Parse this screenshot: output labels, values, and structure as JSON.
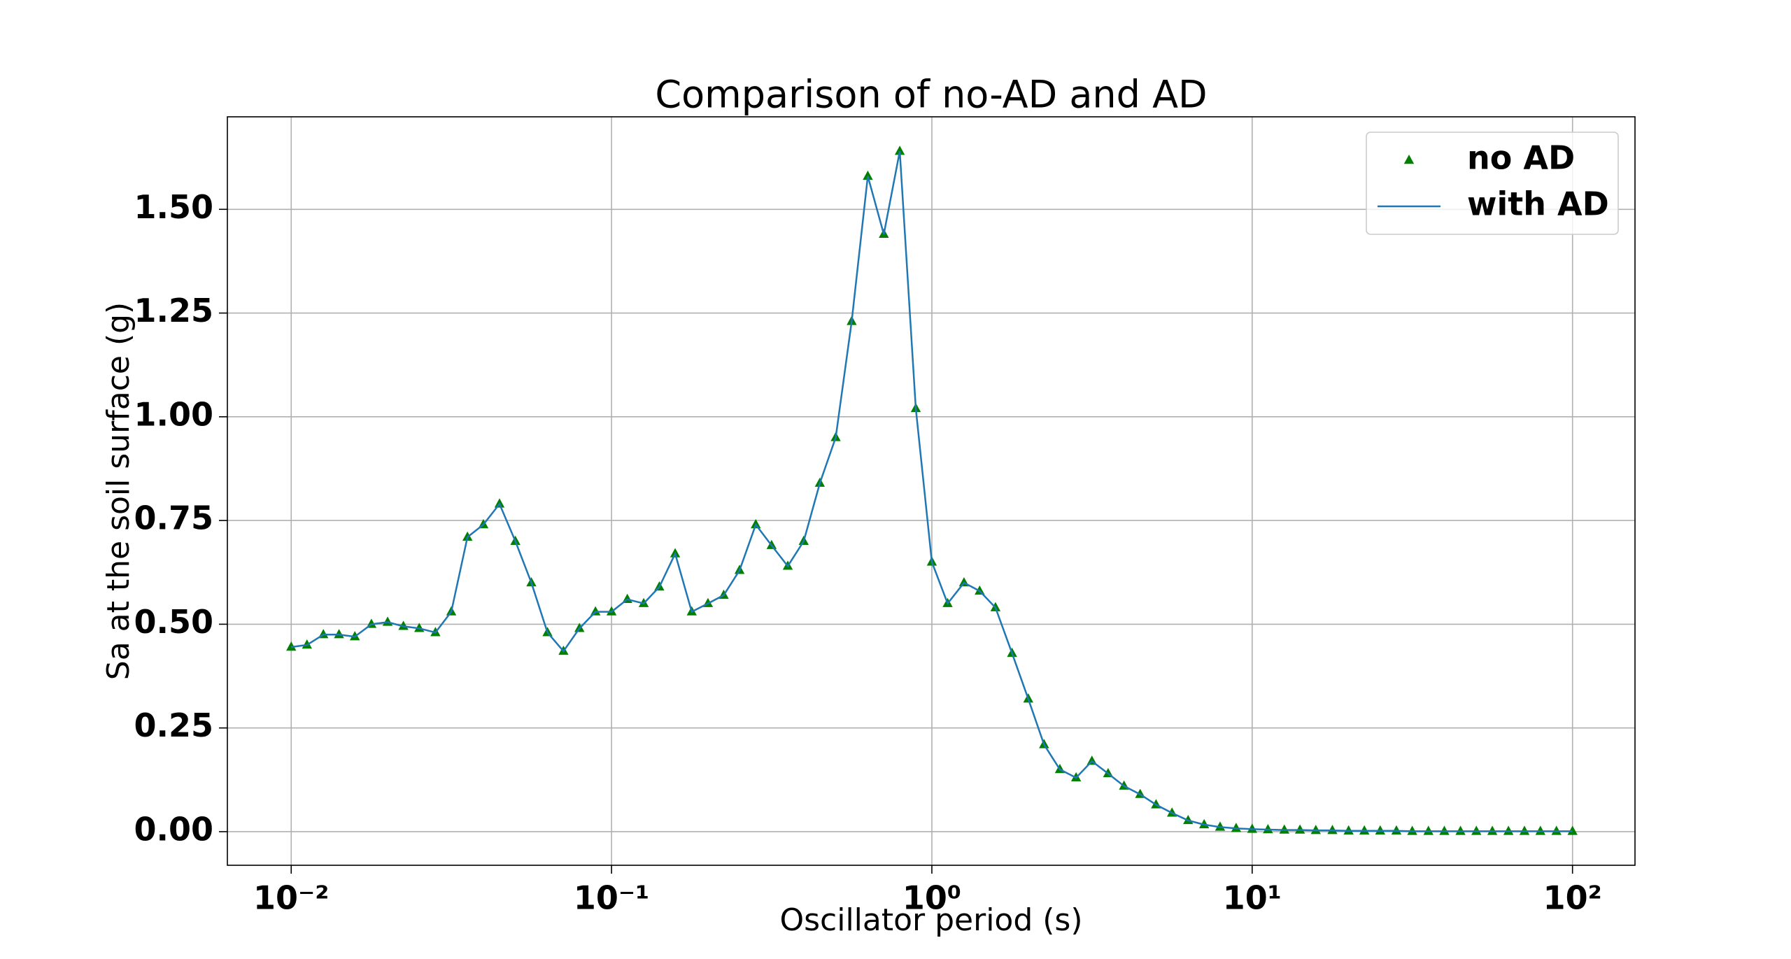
{
  "chart_data": {
    "type": "line",
    "title": "Comparison of no-AD and AD",
    "xlabel": "Oscillator period (s)",
    "ylabel": "Sa at the soil surface (g)",
    "xscale": "log",
    "grid": true,
    "legend": "upper right",
    "xlim": [
      0.00632,
      156.7
    ],
    "ylim": [
      -0.081,
      1.723
    ],
    "xticks": [
      {
        "value": 0.01,
        "label": "10⁻²"
      },
      {
        "value": 0.1,
        "label": "10⁻¹"
      },
      {
        "value": 1,
        "label": "10⁰"
      },
      {
        "value": 10,
        "label": "10¹"
      },
      {
        "value": 100,
        "label": "10²"
      }
    ],
    "yticks": [
      {
        "value": 0,
        "label": "0.00"
      },
      0.25,
      {
        "value": 0.5,
        "label": "0.50"
      },
      0.75,
      {
        "value": 1,
        "label": "1.00"
      },
      1.25,
      {
        "value": 1.5,
        "label": "1.50"
      }
    ],
    "x": [
      0.01,
      0.0112,
      0.0126,
      0.0141,
      0.0158,
      0.0178,
      0.02,
      0.0224,
      0.0251,
      0.0282,
      0.0316,
      0.0355,
      0.0398,
      0.0447,
      0.0501,
      0.0562,
      0.0631,
      0.0708,
      0.0794,
      0.0891,
      0.1,
      0.112,
      0.126,
      0.141,
      0.158,
      0.178,
      0.2,
      0.224,
      0.251,
      0.282,
      0.316,
      0.355,
      0.398,
      0.447,
      0.501,
      0.562,
      0.631,
      0.708,
      0.794,
      0.891,
      1,
      1.12,
      1.26,
      1.41,
      1.58,
      1.78,
      2,
      2.24,
      2.51,
      2.82,
      3.16,
      3.55,
      3.98,
      4.47,
      5.01,
      5.62,
      6.31,
      7.08,
      7.94,
      8.91,
      10,
      11.2,
      12.6,
      14.1,
      15.8,
      17.8,
      20,
      22.4,
      25.1,
      28.2,
      31.6,
      35.5,
      39.8,
      44.7,
      50.1,
      56.2,
      63.1,
      70.8,
      79.4,
      89.1,
      100
    ],
    "series": [
      {
        "name": "no AD",
        "color": "#008000",
        "marker": "triangle",
        "line": false,
        "values": [
          0.445,
          0.45,
          0.475,
          0.475,
          0.47,
          0.5,
          0.505,
          0.495,
          0.49,
          0.48,
          0.53,
          0.71,
          0.74,
          0.79,
          0.7,
          0.6,
          0.48,
          0.435,
          0.49,
          0.53,
          0.53,
          0.56,
          0.55,
          0.59,
          0.67,
          0.53,
          0.55,
          0.57,
          0.63,
          0.74,
          0.69,
          0.64,
          0.7,
          0.84,
          0.95,
          1.23,
          1.58,
          1.44,
          1.64,
          1.02,
          0.65,
          0.55,
          0.6,
          0.58,
          0.54,
          0.43,
          0.32,
          0.21,
          0.15,
          0.13,
          0.17,
          0.14,
          0.11,
          0.09,
          0.065,
          0.045,
          0.027,
          0.017,
          0.011,
          0.008,
          0.006,
          0.005,
          0.004,
          0.004,
          0.003,
          0.003,
          0.002,
          0.002,
          0.002,
          0.002,
          0.001,
          0.001,
          0.001,
          0.001,
          0.001,
          0.001,
          0.001,
          0.001,
          0.001,
          0.001,
          0.001
        ]
      },
      {
        "name": "with AD",
        "color": "#1f77b4",
        "marker": "none",
        "line": true,
        "values": [
          0.445,
          0.45,
          0.475,
          0.475,
          0.47,
          0.5,
          0.505,
          0.495,
          0.49,
          0.48,
          0.53,
          0.71,
          0.74,
          0.79,
          0.7,
          0.6,
          0.48,
          0.435,
          0.49,
          0.53,
          0.53,
          0.56,
          0.55,
          0.59,
          0.67,
          0.53,
          0.55,
          0.57,
          0.63,
          0.74,
          0.69,
          0.64,
          0.7,
          0.84,
          0.95,
          1.23,
          1.58,
          1.44,
          1.64,
          1.02,
          0.65,
          0.55,
          0.6,
          0.58,
          0.54,
          0.43,
          0.32,
          0.21,
          0.15,
          0.13,
          0.17,
          0.14,
          0.11,
          0.09,
          0.065,
          0.045,
          0.027,
          0.017,
          0.011,
          0.008,
          0.006,
          0.005,
          0.004,
          0.004,
          0.003,
          0.003,
          0.002,
          0.002,
          0.002,
          0.002,
          0.001,
          0.001,
          0.001,
          0.001,
          0.001,
          0.001,
          0.001,
          0.001,
          0.001,
          0.001,
          0.001
        ]
      }
    ]
  }
}
